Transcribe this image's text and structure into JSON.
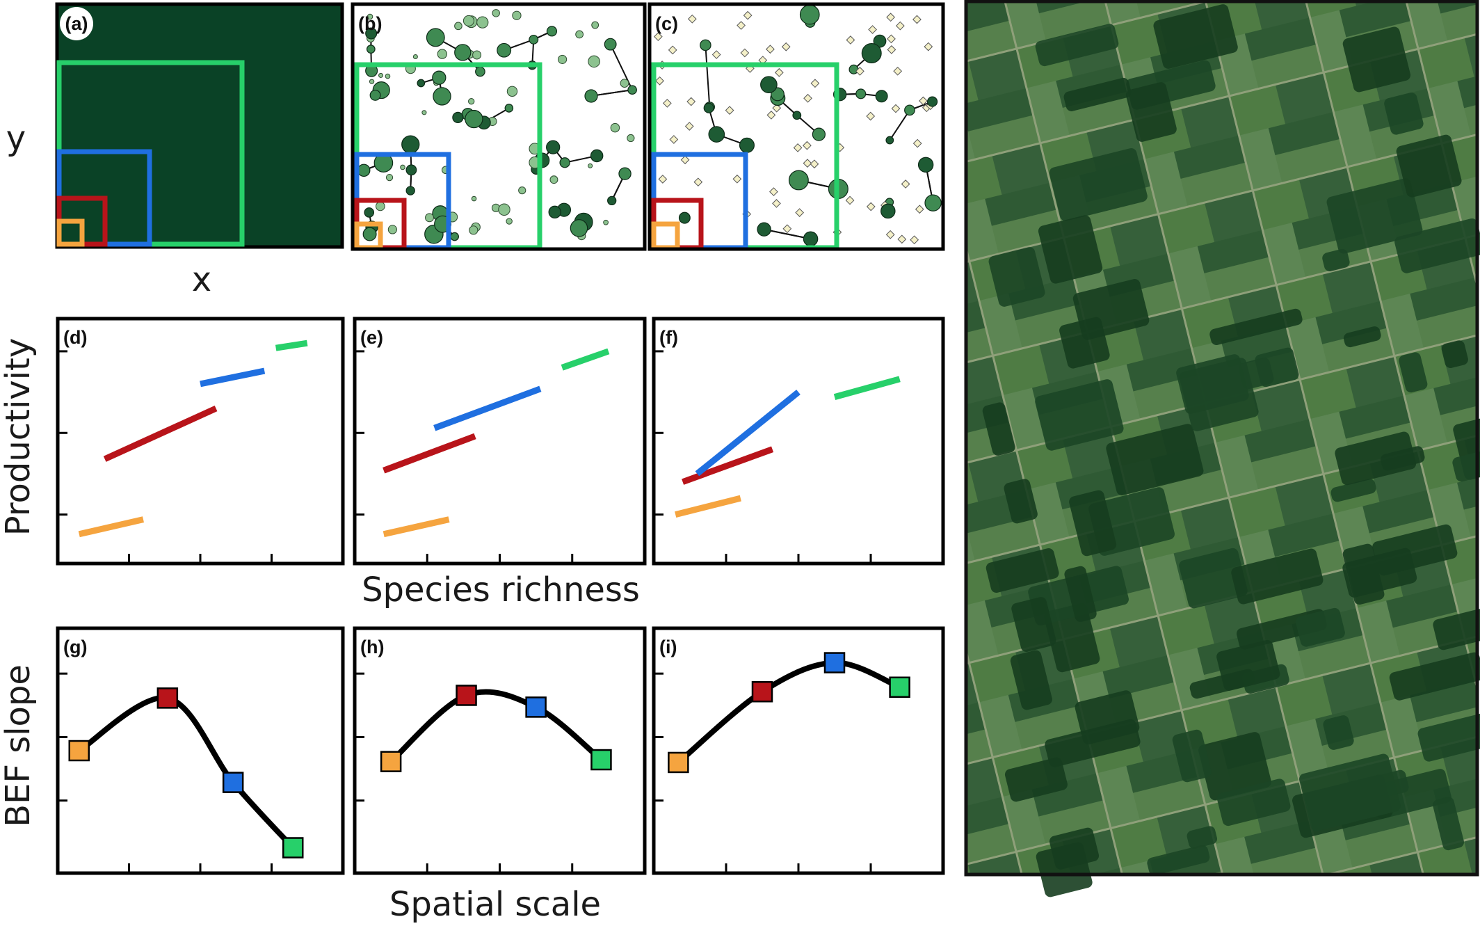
{
  "panel_labels": {
    "a": "(a)",
    "b": "(b)",
    "c": "(c)",
    "d": "(d)",
    "e": "(e)",
    "f": "(f)",
    "g": "(g)",
    "h": "(h)",
    "i": "(i)"
  },
  "axis_labels": {
    "map_x": "x",
    "map_y": "y",
    "productivity": "Productivity",
    "species_richness": "Species richness",
    "bef_slope": "BEF slope",
    "spatial_scale": "Spatial scale"
  },
  "colors": {
    "orange": "#f5a43f",
    "red": "#b8141a",
    "blue": "#1f6fe0",
    "green": "#27d06a",
    "forest": "#0a4226",
    "node_dark": "#1e5b34",
    "node_mid": "#3f8a52",
    "node_light": "#8cc28f"
  },
  "scales": [
    "orange",
    "red",
    "blue",
    "green"
  ],
  "chart_data": [
    {
      "type": "line",
      "panel": "(d)",
      "xlabel": "Species richness",
      "ylabel": "Productivity",
      "series": [
        {
          "color": "orange",
          "x": [
            0.15,
            0.6
          ],
          "y": [
            0.18,
            0.27
          ]
        },
        {
          "color": "red",
          "x": [
            0.33,
            1.11
          ],
          "y": [
            0.64,
            0.95
          ]
        },
        {
          "color": "blue",
          "x": [
            1.0,
            1.45
          ],
          "y": [
            1.1,
            1.18
          ]
        },
        {
          "color": "green",
          "x": [
            1.53,
            1.75
          ],
          "y": [
            1.32,
            1.35
          ]
        }
      ]
    },
    {
      "type": "line",
      "panel": "(e)",
      "xlabel": "Species richness",
      "ylabel": "Productivity",
      "series": [
        {
          "color": "orange",
          "x": [
            0.2,
            0.65
          ],
          "y": [
            0.18,
            0.27
          ]
        },
        {
          "color": "red",
          "x": [
            0.2,
            0.83
          ],
          "y": [
            0.57,
            0.78
          ]
        },
        {
          "color": "blue",
          "x": [
            0.55,
            1.28
          ],
          "y": [
            0.83,
            1.07
          ]
        },
        {
          "color": "green",
          "x": [
            1.43,
            1.75
          ],
          "y": [
            1.2,
            1.3
          ]
        }
      ]
    },
    {
      "type": "line",
      "panel": "(f)",
      "xlabel": "Species richness",
      "ylabel": "Productivity",
      "series": [
        {
          "color": "orange",
          "x": [
            0.15,
            0.6
          ],
          "y": [
            0.3,
            0.4
          ]
        },
        {
          "color": "red",
          "x": [
            0.2,
            0.82
          ],
          "y": [
            0.5,
            0.7
          ]
        },
        {
          "color": "blue",
          "x": [
            0.3,
            1.0
          ],
          "y": [
            0.55,
            1.05
          ]
        },
        {
          "color": "green",
          "x": [
            1.25,
            1.7
          ],
          "y": [
            1.02,
            1.13
          ]
        }
      ]
    },
    {
      "type": "line",
      "panel": "(g)",
      "xlabel": "Spatial scale",
      "ylabel": "BEF slope",
      "points": [
        {
          "color": "orange",
          "x": 0.15,
          "y": 0.85
        },
        {
          "color": "red",
          "x": 0.77,
          "y": 1.43
        },
        {
          "color": "blue",
          "x": 1.23,
          "y": 0.5
        },
        {
          "color": "green",
          "x": 1.65,
          "y": -0.22
        }
      ]
    },
    {
      "type": "line",
      "panel": "(h)",
      "xlabel": "Spatial scale",
      "ylabel": "BEF slope",
      "points": [
        {
          "color": "orange",
          "x": 0.25,
          "y": 0.73
        },
        {
          "color": "red",
          "x": 0.77,
          "y": 1.46
        },
        {
          "color": "blue",
          "x": 1.25,
          "y": 1.33
        },
        {
          "color": "green",
          "x": 1.7,
          "y": 0.75
        }
      ]
    },
    {
      "type": "line",
      "panel": "(i)",
      "xlabel": "Spatial scale",
      "ylabel": "BEF slope",
      "points": [
        {
          "color": "orange",
          "x": 0.17,
          "y": 0.72
        },
        {
          "color": "red",
          "x": 0.75,
          "y": 1.5
        },
        {
          "color": "blue",
          "x": 1.25,
          "y": 1.82
        },
        {
          "color": "green",
          "x": 1.7,
          "y": 1.55
        }
      ]
    }
  ]
}
